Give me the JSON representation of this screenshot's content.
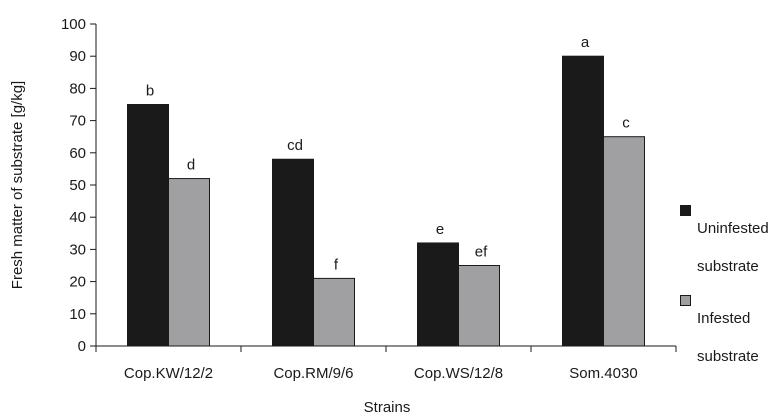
{
  "chart_data": {
    "type": "bar",
    "title": "",
    "xlabel": "Strains",
    "ylabel": "Fresh matter of substrate [g/kg]",
    "ylim": [
      0,
      100
    ],
    "yticks": [
      "0",
      "10",
      "20",
      "30",
      "40",
      "50",
      "60",
      "70",
      "80",
      "90",
      "100"
    ],
    "categories": [
      "Cop.KW/12/2",
      "Cop.RM/9/6",
      "Cop.WS/12/8",
      "Som.4030"
    ],
    "series": [
      {
        "name": "Uninfested substrate",
        "legend_lines": [
          "Uninfested",
          "substrate"
        ],
        "color": "#1a1a1a",
        "values": [
          75,
          58,
          32,
          90
        ],
        "labels": [
          "b",
          "cd",
          "e",
          "a"
        ]
      },
      {
        "name": "Infested substrate",
        "legend_lines": [
          "Infested",
          "substrate"
        ],
        "color": "#a0a0a2",
        "values": [
          52,
          21,
          25,
          65
        ],
        "labels": [
          "d",
          "f",
          "ef",
          "c"
        ]
      }
    ],
    "legend_position": "right",
    "grid": false
  }
}
